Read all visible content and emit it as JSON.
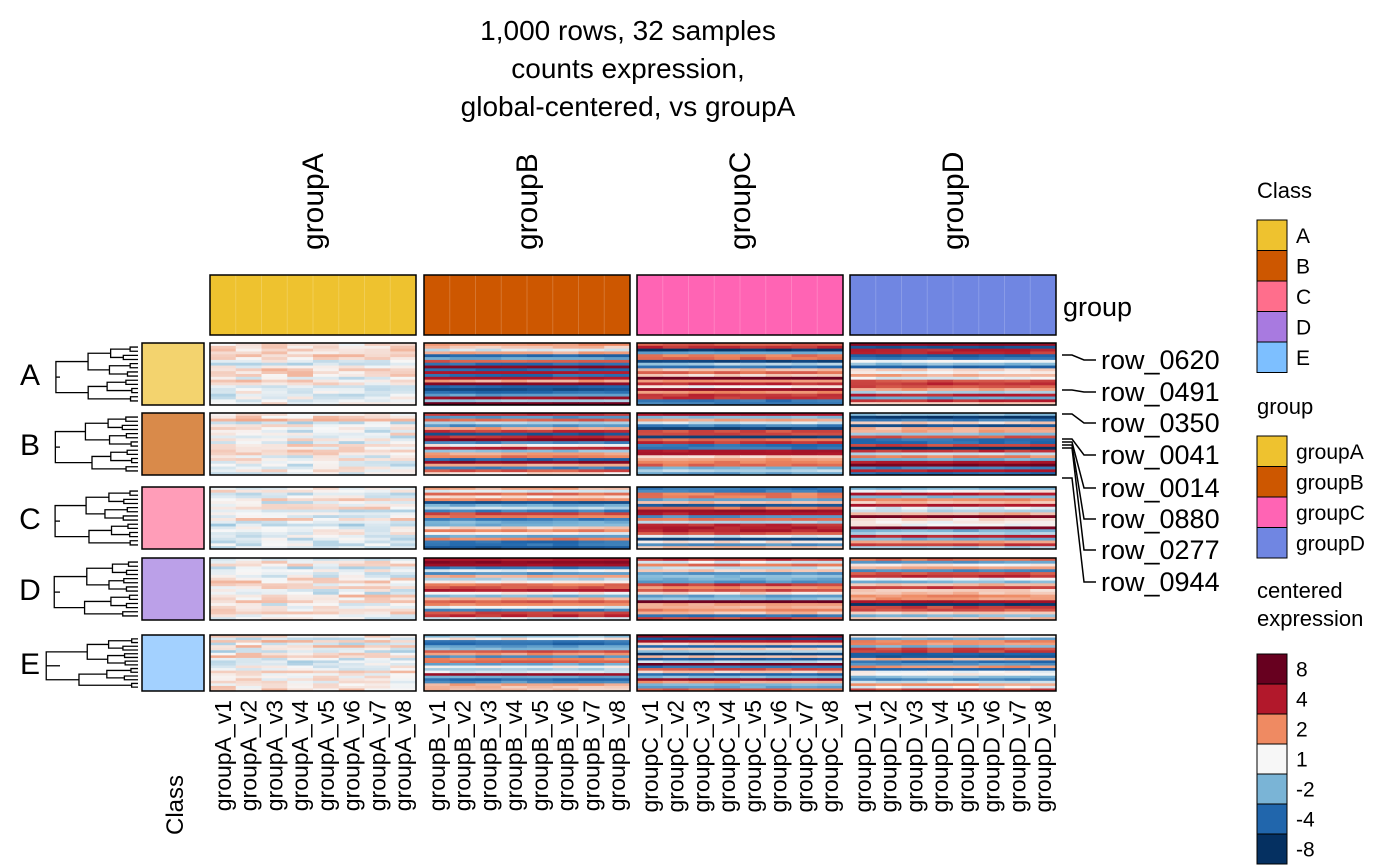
{
  "chart_data": {
    "type": "heatmap",
    "title": [
      "1,000 rows, 32 samples",
      "counts expression,",
      "global-centered, vs groupA"
    ],
    "column_groups": [
      {
        "name": "groupA",
        "color": "#EEC22F",
        "samples": [
          "groupA_v1",
          "groupA_v2",
          "groupA_v3",
          "groupA_v4",
          "groupA_v5",
          "groupA_v6",
          "groupA_v7",
          "groupA_v8"
        ]
      },
      {
        "name": "groupB",
        "color": "#CD5700",
        "samples": [
          "groupB_v1",
          "groupB_v2",
          "groupB_v3",
          "groupB_v4",
          "groupB_v5",
          "groupB_v6",
          "groupB_v7",
          "groupB_v8"
        ]
      },
      {
        "name": "groupC",
        "color": "#FF64B4",
        "samples": [
          "groupC_v1",
          "groupC_v2",
          "groupC_v3",
          "groupC_v4",
          "groupC_v5",
          "groupC_v6",
          "groupC_v7",
          "groupC_v8"
        ]
      },
      {
        "name": "groupD",
        "color": "#7086E2",
        "samples": [
          "groupD_v1",
          "groupD_v2",
          "groupD_v3",
          "groupD_v4",
          "groupD_v5",
          "groupD_v6",
          "groupD_v7",
          "groupD_v8"
        ]
      }
    ],
    "column_annotation_name": "group",
    "row_groups": [
      {
        "name": "A",
        "color": "#F3D36E"
      },
      {
        "name": "B",
        "color": "#D98A4A"
      },
      {
        "name": "C",
        "color": "#FF9DB8"
      },
      {
        "name": "D",
        "color": "#BBA0E8"
      },
      {
        "name": "E",
        "color": "#A3D1FF"
      }
    ],
    "row_annotation_name": "Class",
    "marked_rows": [
      "row_0620",
      "row_0491",
      "row_0350",
      "row_0041",
      "row_0014",
      "row_0880",
      "row_0277",
      "row_0944"
    ],
    "legends": {
      "class": {
        "title": "Class",
        "items": [
          {
            "label": "A",
            "color": "#EEC22F"
          },
          {
            "label": "B",
            "color": "#CD5700"
          },
          {
            "label": "C",
            "color": "#FF6E8C"
          },
          {
            "label": "D",
            "color": "#A87AE0"
          },
          {
            "label": "E",
            "color": "#7DBFFF"
          }
        ]
      },
      "group": {
        "title": "group",
        "items": [
          {
            "label": "groupA",
            "color": "#EEC22F"
          },
          {
            "label": "groupB",
            "color": "#CD5700"
          },
          {
            "label": "groupC",
            "color": "#FF64B4"
          },
          {
            "label": "groupD",
            "color": "#7086E2"
          }
        ]
      },
      "expression": {
        "title": [
          "centered",
          "expression"
        ],
        "items": [
          {
            "label": "8",
            "color": "#67001F"
          },
          {
            "label": "4",
            "color": "#B2182B"
          },
          {
            "label": "2",
            "color": "#EF8A62"
          },
          {
            "label": "1",
            "color": "#F7F7F7"
          },
          {
            "label": "-2",
            "color": "#7AB4D6"
          },
          {
            "label": "-4",
            "color": "#2166AC"
          },
          {
            "label": "-8",
            "color": "#053061"
          }
        ]
      }
    }
  }
}
